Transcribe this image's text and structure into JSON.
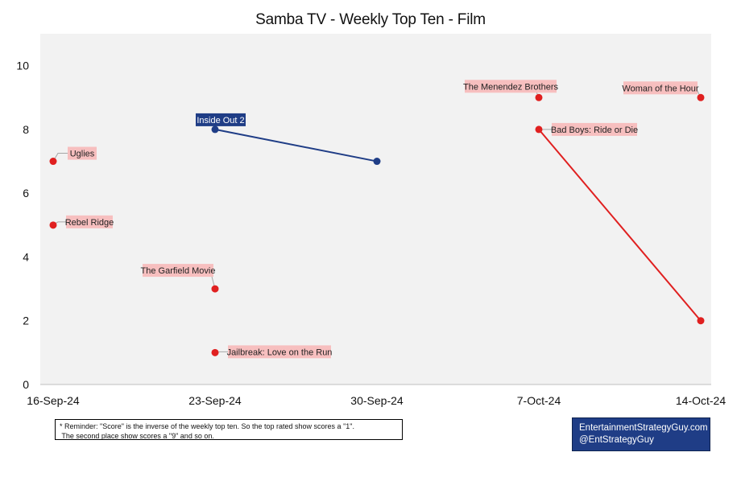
{
  "chart_data": {
    "type": "scatter",
    "title": "Samba TV - Weekly Top Ten - Film",
    "x_ticks": [
      "16-Sep-24",
      "23-Sep-24",
      "30-Sep-24",
      "7-Oct-24",
      "14-Oct-24"
    ],
    "y_ticks": [
      "0",
      "2",
      "4",
      "6",
      "8",
      "10"
    ],
    "xlim": [
      "16-Sep-24",
      "14-Oct-24"
    ],
    "ylim": [
      0,
      11
    ],
    "grid": false,
    "series": [
      {
        "name": "Uglies",
        "color": "#e02020",
        "points": [
          {
            "x": "16-Sep-24",
            "y": 7
          }
        ]
      },
      {
        "name": "Rebel Ridge",
        "color": "#e02020",
        "points": [
          {
            "x": "16-Sep-24",
            "y": 5
          }
        ]
      },
      {
        "name": "Inside Out 2",
        "color": "#1f3d86",
        "points": [
          {
            "x": "23-Sep-24",
            "y": 8
          },
          {
            "x": "30-Sep-24",
            "y": 7
          }
        ]
      },
      {
        "name": "The Garfield Movie",
        "color": "#e02020",
        "points": [
          {
            "x": "23-Sep-24",
            "y": 3
          }
        ]
      },
      {
        "name": "Jailbreak: Love on the Run",
        "color": "#e02020",
        "points": [
          {
            "x": "23-Sep-24",
            "y": 1
          }
        ]
      },
      {
        "name": "The Menendez Brothers",
        "color": "#e02020",
        "points": [
          {
            "x": "7-Oct-24",
            "y": 9
          }
        ]
      },
      {
        "name": "Bad Boys: Ride or Die",
        "color": "#e02020",
        "points": [
          {
            "x": "7-Oct-24",
            "y": 8
          },
          {
            "x": "14-Oct-24",
            "y": 2
          }
        ]
      },
      {
        "name": "Woman of the Hour",
        "color": "#e02020",
        "points": [
          {
            "x": "14-Oct-24",
            "y": 9
          }
        ]
      }
    ]
  },
  "footnote": {
    "line1": "* Reminder: \"Score\" is the inverse of the weekly top ten. So the top rated show scores a \"1\".",
    "line2": " The second place show scores a \"9\" and so on."
  },
  "brand": {
    "line1": "EntertainmentStrategyGuy.com",
    "line2": "@EntStrategyGuy"
  },
  "colors": {
    "plot_background": "#f2f2f2",
    "highlight_series": "#1f3d86",
    "default_series": "#e02020",
    "label_background": "#f7bfbf"
  }
}
